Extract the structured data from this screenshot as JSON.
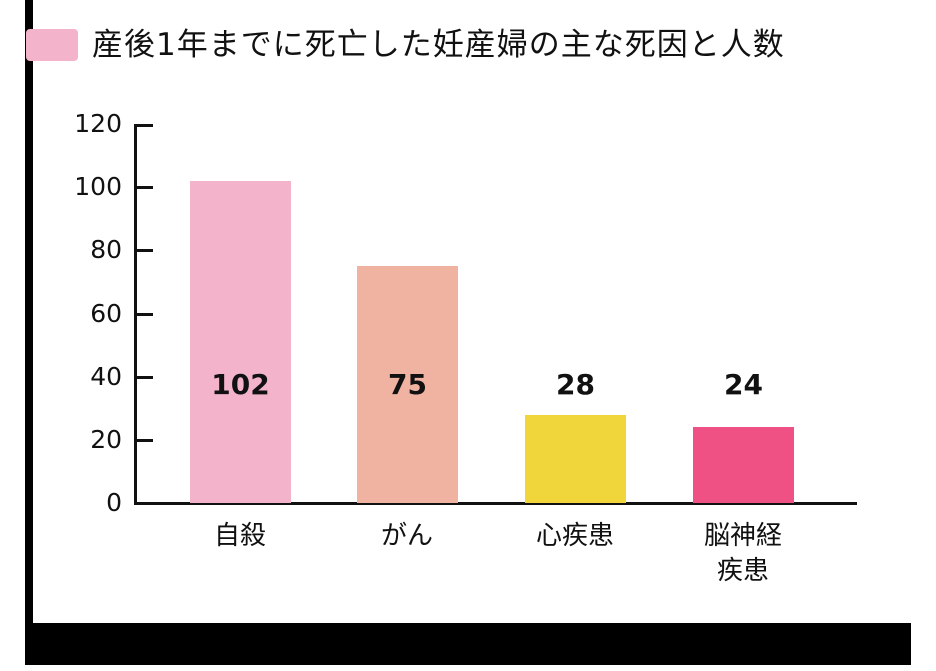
{
  "title": "産後1年までに死亡した妊産婦の主な死因と人数",
  "legend_color": "#F2B3CB",
  "y_ticks": [
    "0",
    "20",
    "40",
    "60",
    "80",
    "100",
    "120"
  ],
  "bars": [
    {
      "category": "自殺",
      "category_line2": "",
      "value": "102",
      "color": "#F2B3CB"
    },
    {
      "category": "がん",
      "category_line2": "",
      "value": "75",
      "color": "#F0B3A2"
    },
    {
      "category": "心疾患",
      "category_line2": "",
      "value": "28",
      "color": "#F0D63A"
    },
    {
      "category": "脳神経",
      "category_line2": "疾患",
      "value": "24",
      "color": "#EF5185"
    }
  ],
  "chart_data": {
    "type": "bar",
    "title": "産後1年までに死亡した妊産婦の主な死因と人数",
    "categories": [
      "自殺",
      "がん",
      "心疾患",
      "脳神経疾患"
    ],
    "values": [
      102,
      75,
      28,
      24
    ],
    "colors": [
      "#F2B3CB",
      "#F0B3A2",
      "#F0D63A",
      "#EF5185"
    ],
    "xlabel": "",
    "ylabel": "",
    "ylim": [
      0,
      120
    ],
    "yticks": [
      0,
      20,
      40,
      60,
      80,
      100,
      120
    ],
    "grid": false,
    "data_labels": true,
    "legend_position": "top-left"
  }
}
